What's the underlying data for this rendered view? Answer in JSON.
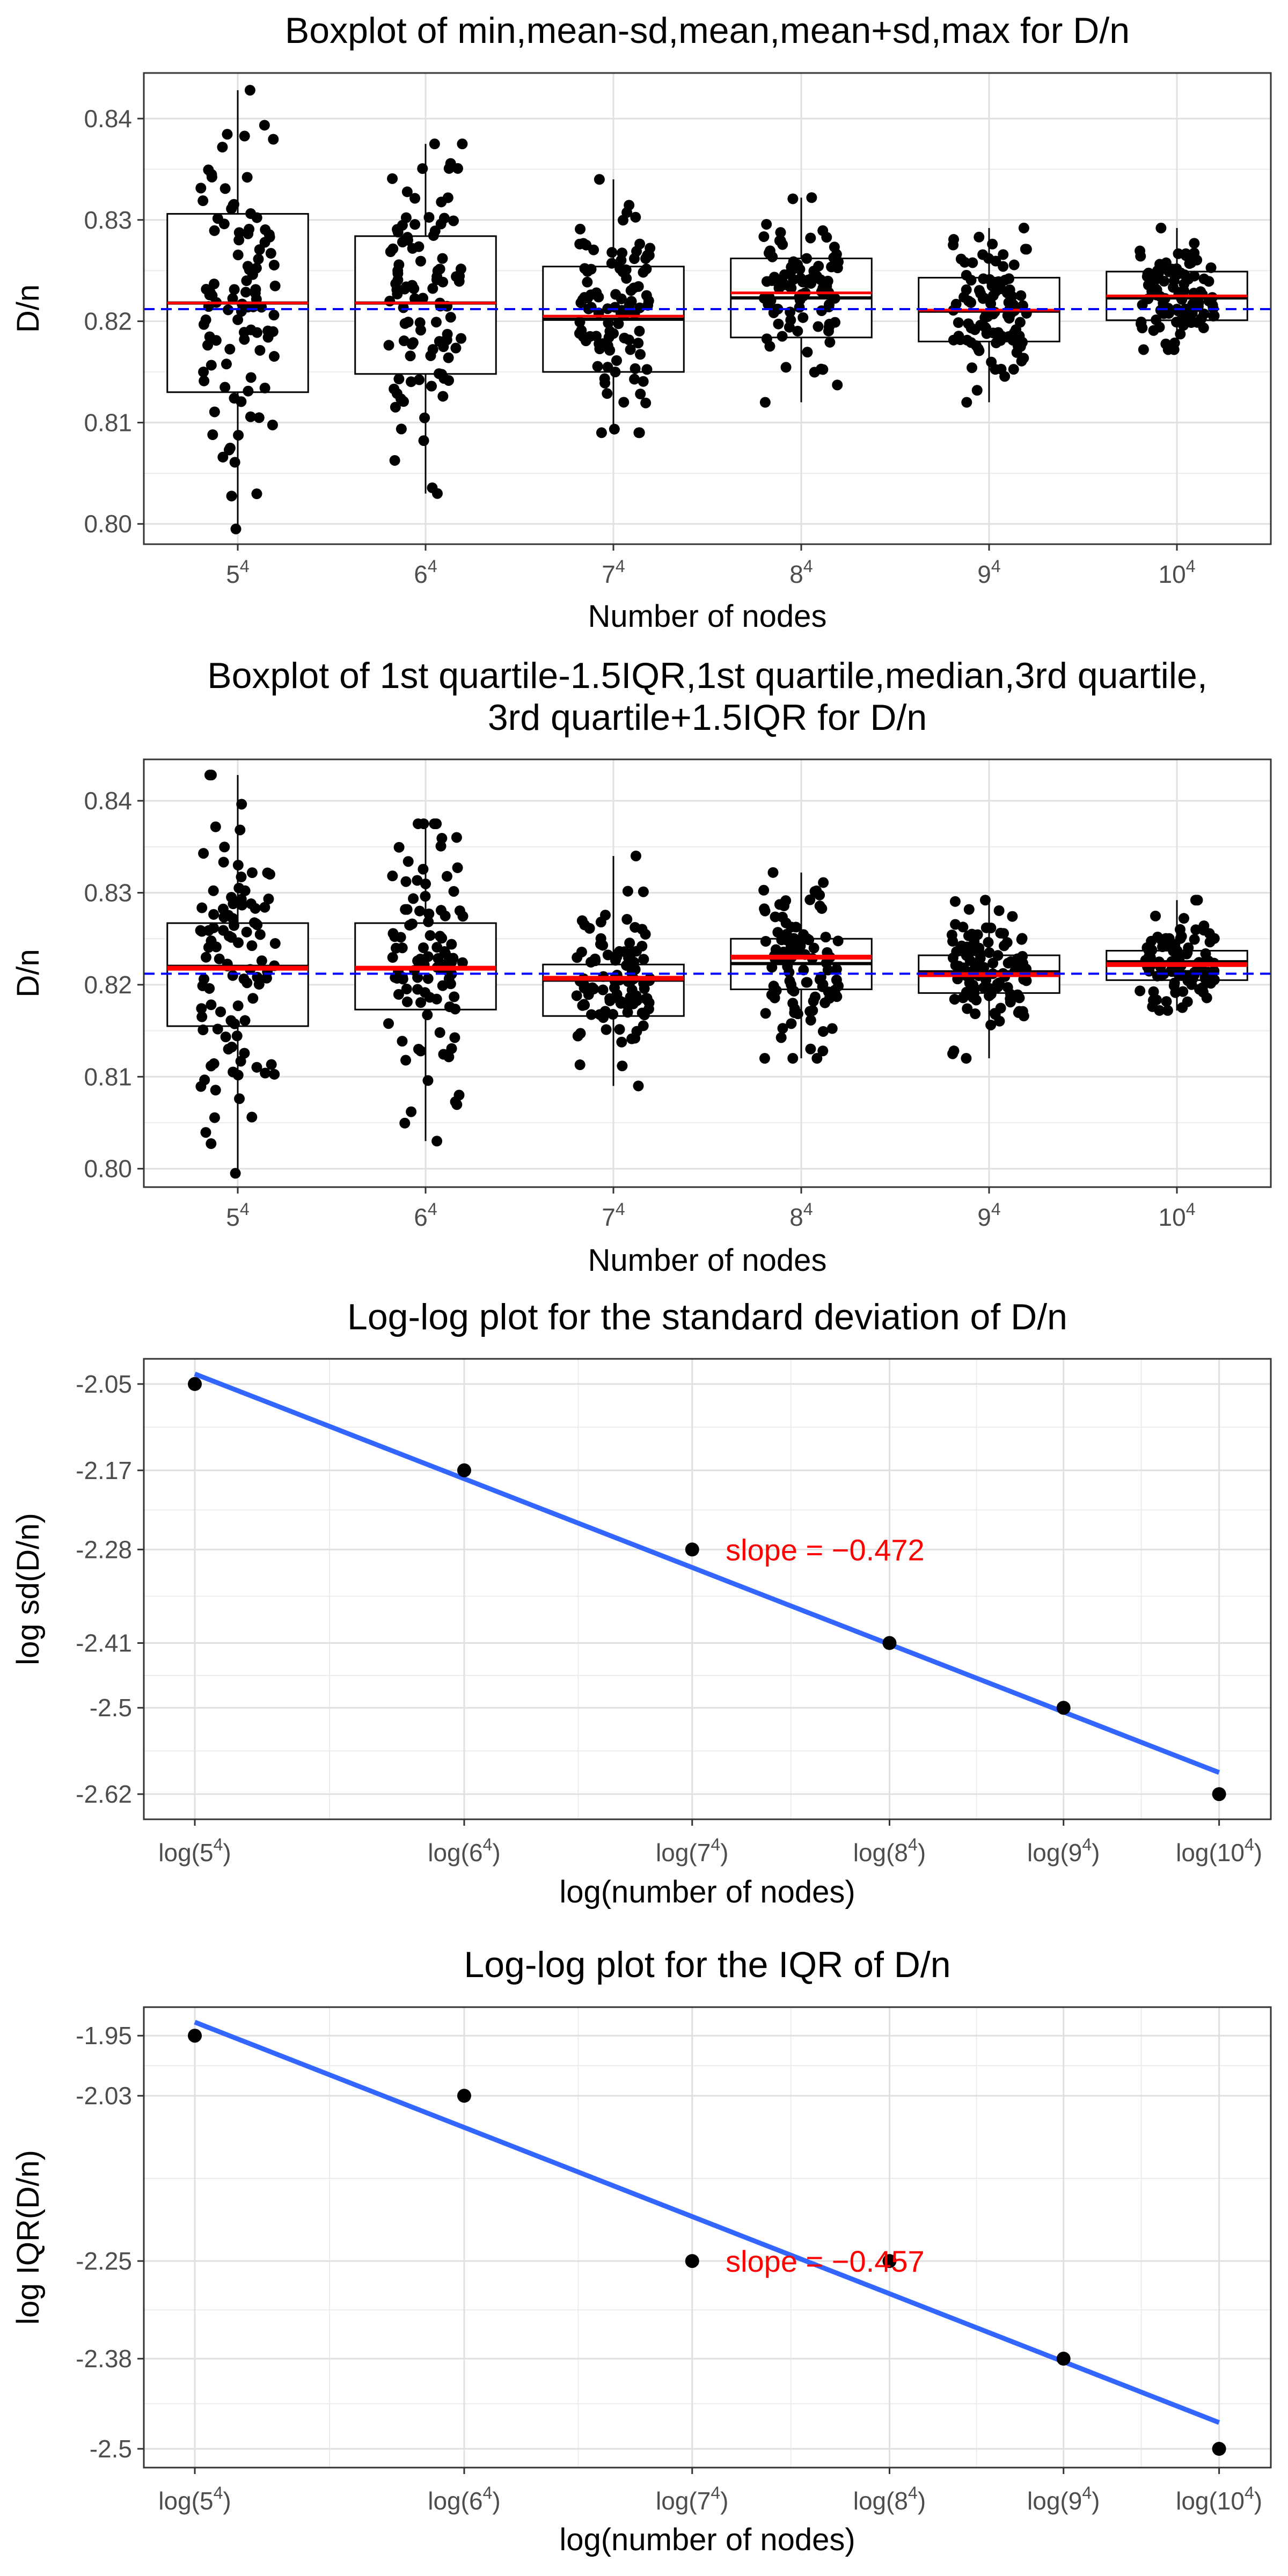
{
  "chart_data": [
    {
      "type": "box",
      "title": [
        "Boxplot of min,mean-sd,mean,mean+sd,max for D/n"
      ],
      "xlabel": "Number of nodes",
      "ylabel": "D/n",
      "categories": [
        {
          "base": "5",
          "exp": "4"
        },
        {
          "base": "6",
          "exp": "4"
        },
        {
          "base": "7",
          "exp": "4"
        },
        {
          "base": "8",
          "exp": "4"
        },
        {
          "base": "9",
          "exp": "4"
        },
        {
          "base": "10",
          "exp": "4"
        }
      ],
      "yticks": [
        "0.80",
        "0.81",
        "0.82",
        "0.83",
        "0.84"
      ],
      "ylim": [
        0.798,
        0.8445
      ],
      "reference_line": {
        "value": 0.8212,
        "color": "#0000ff",
        "dash": "dashed"
      },
      "mean_color": "#ff0000",
      "boxes": [
        {
          "whisker_low": 0.7995,
          "box_low": 0.813,
          "center": 0.8218,
          "box_high": 0.8306,
          "whisker_high": 0.8428,
          "mean": 0.8218
        },
        {
          "whisker_low": 0.803,
          "box_low": 0.8148,
          "center": 0.8218,
          "box_high": 0.8284,
          "whisker_high": 0.8375,
          "mean": 0.8218
        },
        {
          "whisker_low": 0.809,
          "box_low": 0.815,
          "center": 0.8202,
          "box_high": 0.8254,
          "whisker_high": 0.834,
          "mean": 0.8205
        },
        {
          "whisker_low": 0.812,
          "box_low": 0.8184,
          "center": 0.8223,
          "box_high": 0.8262,
          "whisker_high": 0.8322,
          "mean": 0.8228
        },
        {
          "whisker_low": 0.812,
          "box_low": 0.818,
          "center": 0.821,
          "box_high": 0.8243,
          "whisker_high": 0.8292,
          "mean": 0.8211
        },
        {
          "whisker_low": 0.8172,
          "box_low": 0.8201,
          "center": 0.8223,
          "box_high": 0.8249,
          "whisker_high": 0.8292,
          "mean": 0.8225
        }
      ],
      "points_per_group": 100,
      "point_color": "#000000"
    },
    {
      "type": "box",
      "title": [
        "Boxplot of 1st quartile-1.5IQR,1st quartile,median,3rd quartile,",
        "3rd quartile+1.5IQR for D/n"
      ],
      "xlabel": "Number of nodes",
      "ylabel": "D/n",
      "categories": [
        {
          "base": "5",
          "exp": "4"
        },
        {
          "base": "6",
          "exp": "4"
        },
        {
          "base": "7",
          "exp": "4"
        },
        {
          "base": "8",
          "exp": "4"
        },
        {
          "base": "9",
          "exp": "4"
        },
        {
          "base": "10",
          "exp": "4"
        }
      ],
      "yticks": [
        "0.80",
        "0.81",
        "0.82",
        "0.83",
        "0.84"
      ],
      "ylim": [
        0.798,
        0.8445
      ],
      "reference_line": {
        "value": 0.8212,
        "color": "#0000ff",
        "dash": "dashed"
      },
      "mean_color": "#ff0000",
      "boxes": [
        {
          "whisker_low": 0.7995,
          "box_low": 0.8155,
          "center": 0.822,
          "box_high": 0.8267,
          "whisker_high": 0.8428,
          "mean": 0.8218
        },
        {
          "whisker_low": 0.803,
          "box_low": 0.8173,
          "center": 0.8218,
          "box_high": 0.8267,
          "whisker_high": 0.8375,
          "mean": 0.8218
        },
        {
          "whisker_low": 0.809,
          "box_low": 0.8166,
          "center": 0.8205,
          "box_high": 0.8222,
          "whisker_high": 0.834,
          "mean": 0.8207
        },
        {
          "whisker_low": 0.812,
          "box_low": 0.8195,
          "center": 0.8223,
          "box_high": 0.825,
          "whisker_high": 0.8322,
          "mean": 0.823
        },
        {
          "whisker_low": 0.812,
          "box_low": 0.8191,
          "center": 0.8214,
          "box_high": 0.8232,
          "whisker_high": 0.8292,
          "mean": 0.8211
        },
        {
          "whisker_low": 0.8172,
          "box_low": 0.8205,
          "center": 0.8225,
          "box_high": 0.8237,
          "whisker_high": 0.8292,
          "mean": 0.8222
        }
      ],
      "points_per_group": 100,
      "point_color": "#000000"
    },
    {
      "type": "scatter",
      "title": [
        "Log-log plot for the standard deviation of D/n"
      ],
      "xlabel": "log(number of nodes)",
      "ylabel": "log sd(D/n)",
      "x_tick_labels": [
        {
          "base": "5",
          "exp": "4"
        },
        {
          "base": "6",
          "exp": "4"
        },
        {
          "base": "7",
          "exp": "4"
        },
        {
          "base": "8",
          "exp": "4"
        },
        {
          "base": "9",
          "exp": "4"
        },
        {
          "base": "10",
          "exp": "4"
        }
      ],
      "x_tick_values": [
        6.438,
        7.167,
        7.784,
        8.318,
        8.789,
        9.21
      ],
      "xlim": [
        6.3,
        9.35
      ],
      "y_ticks": [
        -2.62,
        -2.5,
        -2.41,
        -2.28,
        -2.17,
        -2.05
      ],
      "y_tick_labels": [
        "-2.62",
        "-2.5",
        "-2.41",
        "-2.28",
        "-2.17",
        "-2.05"
      ],
      "ylim": [
        -2.655,
        -2.015
      ],
      "x": [
        6.438,
        7.167,
        7.784,
        8.318,
        8.789,
        9.21
      ],
      "y": [
        -2.05,
        -2.17,
        -2.28,
        -2.41,
        -2.5,
        -2.62
      ],
      "fit": {
        "x": [
          6.438,
          9.21
        ],
        "y": [
          -2.036,
          -2.59
        ],
        "color": "#3366ff"
      },
      "annotation": {
        "prefix": "slope",
        "value": "−0.472",
        "x": 7.86,
        "y": -2.28,
        "color": "#ff0000"
      }
    },
    {
      "type": "scatter",
      "title": [
        "Log-log plot for the IQR of D/n"
      ],
      "xlabel": "log(number of nodes)",
      "ylabel": "log IQR(D/n)",
      "x_tick_labels": [
        {
          "base": "5",
          "exp": "4"
        },
        {
          "base": "6",
          "exp": "4"
        },
        {
          "base": "7",
          "exp": "4"
        },
        {
          "base": "8",
          "exp": "4"
        },
        {
          "base": "9",
          "exp": "4"
        },
        {
          "base": "10",
          "exp": "4"
        }
      ],
      "x_tick_values": [
        6.438,
        7.167,
        7.784,
        8.318,
        8.789,
        9.21
      ],
      "xlim": [
        6.3,
        9.35
      ],
      "y_ticks": [
        -2.5,
        -2.38,
        -2.25,
        -2.03,
        -1.95
      ],
      "y_tick_labels": [
        "-2.5",
        "-2.38",
        "-2.25",
        "-2.03",
        "-1.95"
      ],
      "ylim": [
        -2.525,
        -1.912
      ],
      "x": [
        6.438,
        7.167,
        7.784,
        8.318,
        8.789,
        9.21
      ],
      "y": [
        -1.95,
        -2.03,
        -2.25,
        -2.25,
        -2.38,
        -2.5
      ],
      "fit": {
        "x": [
          6.438,
          9.21
        ],
        "y": [
          -1.932,
          -2.465
        ],
        "color": "#3366ff"
      },
      "annotation": {
        "prefix": "slope",
        "value": "−0.457",
        "x": 7.86,
        "y": -2.25,
        "color": "#ff0000"
      }
    }
  ]
}
